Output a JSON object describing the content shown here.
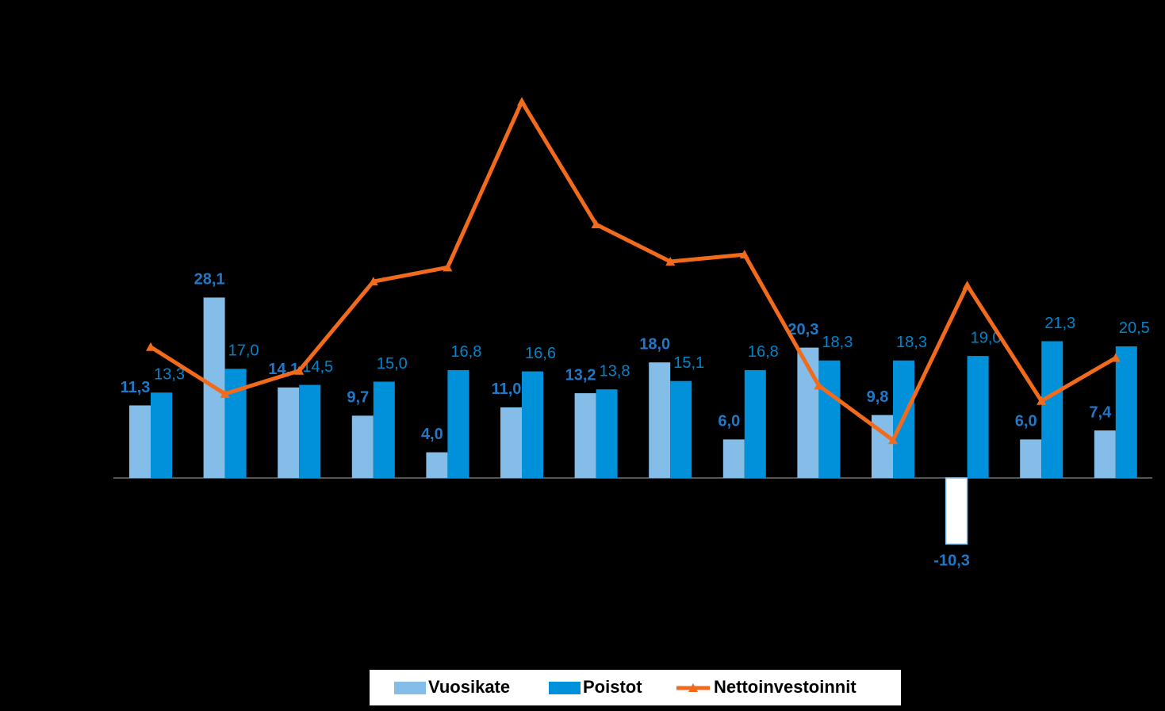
{
  "chart_data": {
    "type": "bar-line",
    "categories": [
      null,
      null,
      null,
      null,
      null,
      null,
      null,
      null,
      null,
      null,
      null,
      null,
      null,
      null
    ],
    "ylim": [
      -20,
      60
    ],
    "series": [
      {
        "name": "Vuosikate",
        "kind": "bar",
        "color": "#85bde9",
        "values": [
          11.3,
          28.1,
          14.1,
          9.7,
          4.0,
          11.0,
          13.2,
          18.0,
          6.0,
          20.3,
          9.8,
          -10.3,
          6.0,
          7.4
        ],
        "value_labels": [
          "11,3",
          "28,1",
          "14,1",
          "9,7",
          "4,0",
          "11,0",
          "13,2",
          "18,0",
          "6,0",
          "20,3",
          "9,8",
          "-10,3",
          "6,0",
          "7,4"
        ]
      },
      {
        "name": "Poistot",
        "kind": "bar",
        "color": "#0091da",
        "values": [
          13.3,
          17.0,
          14.5,
          15.0,
          16.8,
          16.6,
          13.8,
          15.1,
          16.8,
          18.3,
          18.3,
          19.0,
          21.3,
          20.5
        ],
        "value_labels": [
          "13,3",
          "17,0",
          "14,5",
          "15,0",
          "16,8",
          "16,6",
          "13,8",
          "15,1",
          "16,8",
          "18,3",
          "18,3",
          "19,0",
          "21,3",
          "20,5"
        ]
      },
      {
        "name": "Nettoinvestoinnit",
        "kind": "line",
        "color": "#f26b1d",
        "values": [
          20.4,
          13.1,
          16.7,
          30.6,
          32.8,
          58.6,
          39.5,
          33.7,
          34.8,
          14.4,
          5.9,
          30.0,
          12.0,
          18.7
        ]
      }
    ]
  }
}
